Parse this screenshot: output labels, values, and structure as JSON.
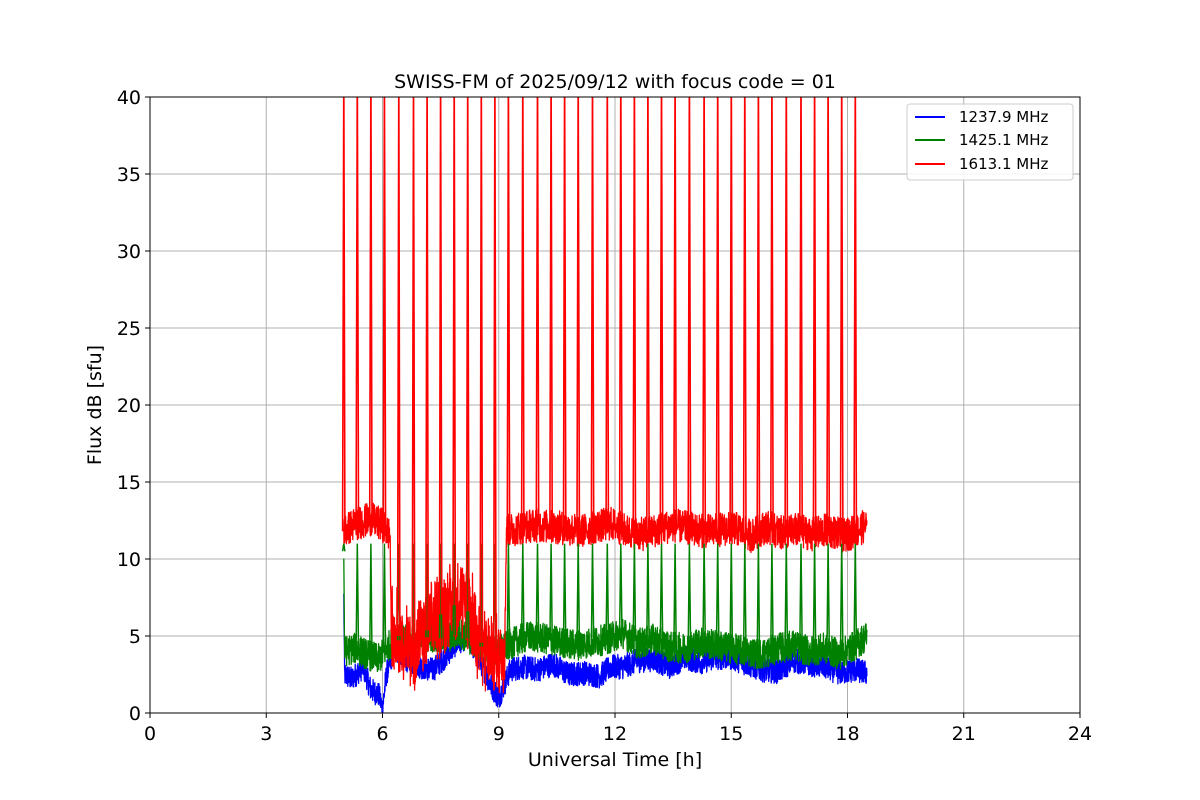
{
  "chart_data": {
    "type": "line",
    "title": "SWISS-FM of 2025/09/12 with focus code = 01",
    "xlabel": "Universal Time [h]",
    "ylabel": "Flux dB [sfu]",
    "xlim": [
      0,
      24
    ],
    "ylim": [
      0,
      40
    ],
    "xticks": [
      0,
      3,
      6,
      9,
      12,
      15,
      18,
      21,
      24
    ],
    "yticks": [
      0,
      5,
      10,
      15,
      20,
      25,
      30,
      35,
      40
    ],
    "grid": true,
    "legend_position": "top-right",
    "series": [
      {
        "name": "1237.9 MHz",
        "color": "#0000ff",
        "points": [
          [
            5.0,
            7.5
          ],
          [
            5.02,
            2.5
          ],
          [
            5.2,
            2.2
          ],
          [
            5.5,
            3.0
          ],
          [
            5.7,
            1.5
          ],
          [
            5.9,
            1.2
          ],
          [
            6.0,
            0.3
          ],
          [
            6.1,
            2.5
          ],
          [
            6.3,
            4.2
          ],
          [
            6.6,
            3.5
          ],
          [
            7.0,
            3.0
          ],
          [
            7.3,
            2.8
          ],
          [
            7.6,
            3.6
          ],
          [
            7.9,
            4.5
          ],
          [
            8.2,
            5.0
          ],
          [
            8.5,
            3.5
          ],
          [
            8.8,
            1.8
          ],
          [
            9.0,
            1.0
          ],
          [
            9.3,
            2.8
          ],
          [
            9.6,
            3.0
          ],
          [
            10.0,
            2.8
          ],
          [
            10.4,
            3.2
          ],
          [
            10.8,
            2.5
          ],
          [
            11.2,
            2.6
          ],
          [
            11.6,
            2.4
          ],
          [
            11.9,
            3.0
          ],
          [
            12.2,
            3.0
          ],
          [
            12.6,
            3.4
          ],
          [
            13.0,
            3.5
          ],
          [
            13.4,
            3.0
          ],
          [
            13.8,
            3.6
          ],
          [
            14.2,
            3.3
          ],
          [
            14.6,
            3.6
          ],
          [
            15.0,
            3.6
          ],
          [
            15.4,
            3.2
          ],
          [
            15.8,
            2.8
          ],
          [
            16.2,
            2.7
          ],
          [
            16.6,
            3.4
          ],
          [
            17.0,
            3.2
          ],
          [
            17.4,
            3.0
          ],
          [
            17.8,
            2.6
          ],
          [
            18.2,
            2.8
          ],
          [
            18.5,
            2.6
          ]
        ]
      },
      {
        "name": "1425.1 MHz",
        "color": "#008000",
        "points": [
          [
            5.0,
            10.5
          ],
          [
            5.02,
            4.0
          ],
          [
            5.3,
            4.2
          ],
          [
            5.6,
            3.8
          ],
          [
            5.9,
            3.5
          ],
          [
            6.2,
            4.5
          ],
          [
            6.5,
            4.8
          ],
          [
            6.9,
            4.5
          ],
          [
            7.2,
            5.0
          ],
          [
            7.6,
            4.8
          ],
          [
            8.0,
            5.2
          ],
          [
            8.4,
            4.5
          ],
          [
            8.8,
            4.0
          ],
          [
            9.1,
            4.2
          ],
          [
            9.4,
            4.6
          ],
          [
            9.8,
            5.0
          ],
          [
            10.2,
            4.8
          ],
          [
            10.6,
            4.6
          ],
          [
            11.0,
            4.4
          ],
          [
            11.4,
            4.6
          ],
          [
            11.8,
            4.8
          ],
          [
            12.2,
            5.2
          ],
          [
            12.6,
            4.5
          ],
          [
            13.0,
            4.8
          ],
          [
            13.4,
            4.3
          ],
          [
            13.8,
            4.2
          ],
          [
            14.2,
            4.6
          ],
          [
            14.6,
            4.4
          ],
          [
            15.0,
            4.2
          ],
          [
            15.4,
            4.0
          ],
          [
            15.8,
            3.8
          ],
          [
            16.2,
            4.2
          ],
          [
            16.6,
            4.4
          ],
          [
            17.0,
            4.0
          ],
          [
            17.4,
            4.2
          ],
          [
            17.8,
            3.8
          ],
          [
            18.2,
            4.4
          ],
          [
            18.5,
            5.0
          ]
        ]
      },
      {
        "name": "1613.1 MHz",
        "color": "#ff0000",
        "points": [
          [
            5.0,
            11.8
          ],
          [
            5.3,
            12.3
          ],
          [
            5.7,
            12.6
          ],
          [
            6.0,
            12.2
          ],
          [
            6.2,
            11.5
          ],
          [
            6.22,
            5.5
          ],
          [
            6.5,
            4.8
          ],
          [
            6.8,
            4.0
          ],
          [
            7.1,
            5.2
          ],
          [
            7.4,
            6.2
          ],
          [
            7.7,
            6.8
          ],
          [
            8.0,
            7.2
          ],
          [
            8.3,
            6.3
          ],
          [
            8.6,
            4.2
          ],
          [
            8.9,
            3.3
          ],
          [
            9.15,
            4.2
          ],
          [
            9.2,
            11.8
          ],
          [
            9.5,
            12.0
          ],
          [
            9.9,
            12.2
          ],
          [
            10.3,
            12.1
          ],
          [
            10.7,
            12.0
          ],
          [
            11.1,
            11.8
          ],
          [
            11.5,
            12.1
          ],
          [
            11.9,
            12.3
          ],
          [
            12.3,
            11.8
          ],
          [
            12.7,
            11.6
          ],
          [
            13.1,
            11.9
          ],
          [
            13.5,
            12.2
          ],
          [
            13.9,
            12.0
          ],
          [
            14.3,
            11.8
          ],
          [
            14.7,
            11.9
          ],
          [
            15.1,
            12.0
          ],
          [
            15.5,
            11.5
          ],
          [
            15.9,
            12.1
          ],
          [
            16.3,
            11.7
          ],
          [
            16.7,
            11.9
          ],
          [
            17.1,
            11.6
          ],
          [
            17.5,
            11.9
          ],
          [
            17.9,
            11.5
          ],
          [
            18.2,
            11.8
          ],
          [
            18.5,
            12.2
          ]
        ],
        "spike_times": [
          5.0,
          5.35,
          5.7,
          6.05,
          6.42,
          6.8,
          7.15,
          7.5,
          7.85,
          8.2,
          8.55,
          8.9,
          9.25,
          9.62,
          10.0,
          10.35,
          10.7,
          11.05,
          11.42,
          11.8,
          12.15,
          12.5,
          12.85,
          13.2,
          13.55,
          13.92,
          14.3,
          14.65,
          15.0,
          15.35,
          15.7,
          16.05,
          16.42,
          16.8,
          17.15,
          17.5,
          17.85,
          18.2
        ],
        "spike_peak": 40
      }
    ]
  }
}
